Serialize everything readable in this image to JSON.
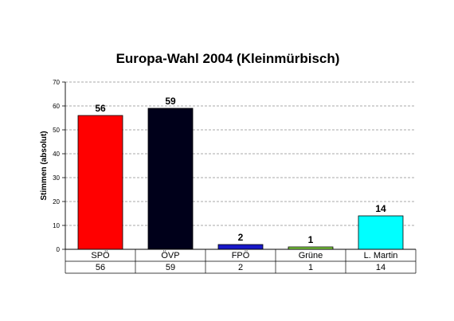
{
  "chart_data": {
    "type": "bar",
    "title": "Europa-Wahl 2004 (Kleinmürbisch)",
    "ylabel": "Stimmen (absolut)",
    "xlabel": "",
    "ylim": [
      0,
      70
    ],
    "yticks": [
      0,
      10,
      20,
      30,
      40,
      50,
      60,
      70
    ],
    "grid": true,
    "legend": "none",
    "data_table": true,
    "categories": [
      "SPÖ",
      "ÖVP",
      "FPÖ",
      "Grüne",
      "L. Martin"
    ],
    "values": [
      56,
      59,
      2,
      1,
      14
    ],
    "value_labels": [
      "56",
      "59",
      "2",
      "1",
      "14"
    ],
    "table_values": [
      "56",
      "59",
      "2",
      "1",
      "14"
    ],
    "colors": [
      "#ff0000",
      "#00001a",
      "#1818c8",
      "#80d040",
      "#00ffff"
    ]
  }
}
